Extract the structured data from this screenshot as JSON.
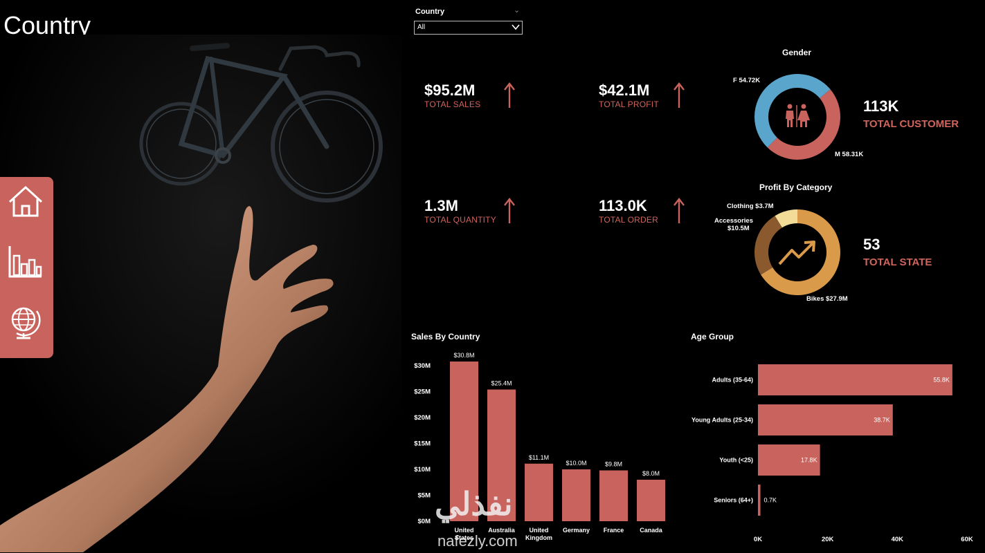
{
  "page": {
    "title": "Country"
  },
  "nav": [
    {
      "name": "home",
      "icon": "home-icon"
    },
    {
      "name": "charts",
      "icon": "bar-chart-icon"
    },
    {
      "name": "globe",
      "icon": "globe-icon"
    }
  ],
  "slicer": {
    "label": "Country",
    "value": "All"
  },
  "kpis": [
    {
      "value": "$95.2M",
      "label": "TOTAL SALES",
      "trend": "up"
    },
    {
      "value": "$42.1M",
      "label": "TOTAL PROFIT",
      "trend": "up"
    },
    {
      "value": "1.3M",
      "label": "TOTAL QUANTITY",
      "trend": "up"
    },
    {
      "value": "113.0K",
      "label": "TOTAL ORDER",
      "trend": "up"
    }
  ],
  "gender": {
    "title": "Gender",
    "f_label": "F 54.72K",
    "m_label": "M 58.31K",
    "total_value": "113K",
    "total_label": "TOTAL CUSTOMER"
  },
  "profit_category": {
    "title": "Profit By Category",
    "clothing_label": "Clothing $3.7M",
    "accessories_label_1": "Accessories",
    "accessories_label_2": "$10.5M",
    "bikes_label": "Bikes $27.9M",
    "total_value": "53",
    "total_label": "TOTAL STATE"
  },
  "sales_country": {
    "title": "Sales By Country",
    "y_ticks": [
      "$0M",
      "$5M",
      "$10M",
      "$15M",
      "$20M",
      "$25M",
      "$30M"
    ]
  },
  "age_group": {
    "title": "Age Group",
    "x_ticks": [
      "0K",
      "20K",
      "40K",
      "60K"
    ]
  },
  "watermark": {
    "arabic": "نفذلي",
    "latin": "nafezly.com"
  },
  "colors": {
    "accent": "#c8635d",
    "label_accent": "#d0645d",
    "male": "#5aa5cc",
    "female": "#c8635d",
    "bikes": "#d99a4a",
    "accessories": "#8a5a2e",
    "clothing": "#f3dc98"
  },
  "chart_data": [
    {
      "type": "pie",
      "title": "Gender",
      "categories": [
        "F",
        "M"
      ],
      "values": [
        54.72,
        58.31
      ],
      "labels": [
        "F 54.72K",
        "M 58.31K"
      ],
      "colors": [
        "#c8635d",
        "#5aa5cc"
      ]
    },
    {
      "type": "pie",
      "title": "Profit By Category",
      "categories": [
        "Bikes",
        "Accessories",
        "Clothing"
      ],
      "values": [
        27.9,
        10.5,
        3.7
      ],
      "labels": [
        "Bikes $27.9M",
        "$10.5M",
        "Clothing $3.7M"
      ],
      "colors": [
        "#d99a4a",
        "#8a5a2e",
        "#f3dc98"
      ]
    },
    {
      "type": "bar",
      "title": "Sales By Country",
      "categories": [
        "United States",
        "Australia",
        "United Kingdom",
        "Germany",
        "France",
        "Canada"
      ],
      "values": [
        30.8,
        25.4,
        11.1,
        10.0,
        9.8,
        8.0
      ],
      "data_labels": [
        "$30.8M",
        "$25.4M",
        "$11.1M",
        "$10.0M",
        "$9.8M",
        "$8.0M"
      ],
      "ylim": [
        0,
        30
      ],
      "y_ticks": [
        "$0M",
        "$5M",
        "$10M",
        "$15M",
        "$20M",
        "$25M",
        "$30M"
      ],
      "grid": false
    },
    {
      "type": "bar",
      "orientation": "horizontal",
      "title": "Age Group",
      "categories": [
        "Adults (35-64)",
        "Young Adults (25-34)",
        "Youth (<25)",
        "Seniors (64+)"
      ],
      "values": [
        55.8,
        38.7,
        17.8,
        0.7
      ],
      "data_labels": [
        "55.8K",
        "38.7K",
        "17.8K",
        "0.7K"
      ],
      "xlim": [
        0,
        60
      ],
      "x_ticks": [
        "0K",
        "20K",
        "40K",
        "60K"
      ],
      "grid": false
    }
  ]
}
